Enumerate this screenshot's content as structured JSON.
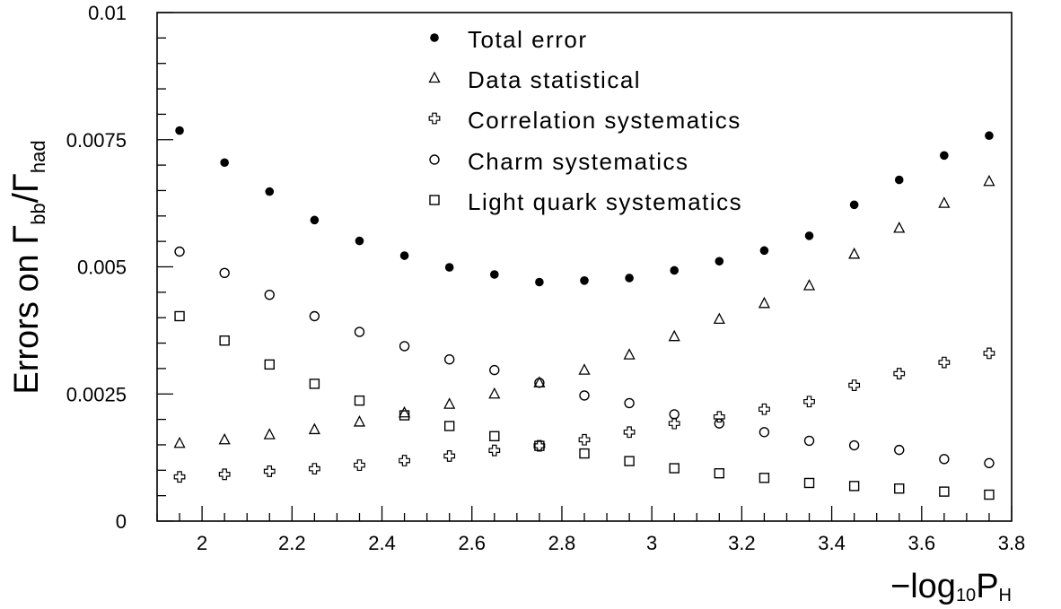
{
  "chart_data": {
    "type": "scatter",
    "title": "",
    "ylabel": {
      "prefix": "Errors on ",
      "gamma_num": "Γ",
      "sub_num": "bb",
      "slash": "/",
      "gamma_den": "Γ",
      "sub_den": "had"
    },
    "xlabel": {
      "prefix": "−log",
      "base": "10",
      "var": "P",
      "sub": "H"
    },
    "xlim": [
      1.9,
      3.8
    ],
    "ylim": [
      0,
      0.01
    ],
    "x_ticks": [
      "2",
      "2.2",
      "2.4",
      "2.6",
      "2.8",
      "3",
      "3.2",
      "3.4",
      "3.6",
      "3.8"
    ],
    "y_ticks": [
      "0",
      "0.0025",
      "0.005",
      "0.0075",
      "0.01"
    ],
    "x_tick_values": [
      2,
      2.2,
      2.4,
      2.6,
      2.8,
      3,
      3.2,
      3.4,
      3.6,
      3.8
    ],
    "y_tick_values": [
      0,
      0.0025,
      0.005,
      0.0075,
      0.01
    ],
    "legend_position": "top-center",
    "grid": false,
    "x": [
      1.95,
      2.05,
      2.15,
      2.25,
      2.35,
      2.45,
      2.55,
      2.65,
      2.75,
      2.85,
      2.95,
      3.05,
      3.15,
      3.25,
      3.35,
      3.45,
      3.55,
      3.65,
      3.75
    ],
    "series": [
      {
        "name": "Total error",
        "marker": "filled-circle",
        "values": [
          0.00768,
          0.00705,
          0.00648,
          0.00592,
          0.00551,
          0.00522,
          0.00499,
          0.00485,
          0.0047,
          0.00473,
          0.00478,
          0.00493,
          0.00511,
          0.00532,
          0.00561,
          0.00622,
          0.00671,
          0.00719,
          0.00758
        ]
      },
      {
        "name": "Data statistical",
        "marker": "triangle",
        "values": [
          0.00153,
          0.0016,
          0.0017,
          0.0018,
          0.00195,
          0.00213,
          0.0023,
          0.0025,
          0.00272,
          0.00297,
          0.00327,
          0.00363,
          0.00397,
          0.00428,
          0.00463,
          0.00525,
          0.00576,
          0.00625,
          0.00668
        ]
      },
      {
        "name": "Correlation systematics",
        "marker": "cross",
        "values": [
          0.00087,
          0.00092,
          0.00098,
          0.00103,
          0.0011,
          0.00119,
          0.00128,
          0.00139,
          0.00148,
          0.0016,
          0.00175,
          0.00192,
          0.00205,
          0.0022,
          0.00235,
          0.00267,
          0.0029,
          0.00312,
          0.0033
        ]
      },
      {
        "name": "Charm systematics",
        "marker": "open-circle",
        "values": [
          0.0053,
          0.00488,
          0.00445,
          0.00403,
          0.00372,
          0.00344,
          0.00318,
          0.00297,
          0.00272,
          0.00247,
          0.00232,
          0.0021,
          0.00192,
          0.00175,
          0.00158,
          0.00149,
          0.0014,
          0.00122,
          0.00114
        ]
      },
      {
        "name": "Light quark systematics",
        "marker": "open-square",
        "values": [
          0.00403,
          0.00355,
          0.00308,
          0.0027,
          0.00237,
          0.00208,
          0.00187,
          0.00167,
          0.00148,
          0.00133,
          0.00118,
          0.00104,
          0.00094,
          0.00085,
          0.00075,
          0.00069,
          0.00064,
          0.00058,
          0.00052
        ]
      }
    ]
  }
}
